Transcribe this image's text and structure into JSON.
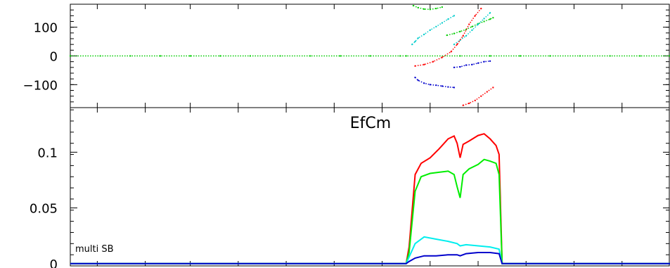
{
  "chart_data": [
    {
      "type": "scatter",
      "panel": "phase",
      "title": "",
      "xlabel": "",
      "ylabel": "",
      "xlim": [
        0,
        1
      ],
      "ylim": [
        -180,
        180
      ],
      "yticks": [
        {
          "value": 100,
          "label": "100"
        },
        {
          "value": 0,
          "label": "0"
        },
        {
          "value": -100,
          "label": "−100"
        }
      ],
      "series": [
        {
          "color": "#00cc00",
          "points": [
            [
              0.0,
              0
            ],
            [
              0.05,
              0
            ],
            [
              0.1,
              0
            ],
            [
              0.15,
              0
            ],
            [
              0.2,
              0
            ],
            [
              0.25,
              0
            ],
            [
              0.3,
              0
            ],
            [
              0.35,
              0
            ],
            [
              0.4,
              0
            ],
            [
              0.45,
              0
            ],
            [
              0.5,
              0
            ],
            [
              0.55,
              0
            ],
            [
              0.56,
              0
            ],
            [
              0.65,
              0
            ],
            [
              0.7,
              0
            ],
            [
              0.75,
              0
            ],
            [
              0.8,
              0
            ],
            [
              0.85,
              0
            ],
            [
              0.9,
              0
            ],
            [
              0.95,
              0
            ],
            [
              1.0,
              0
            ]
          ]
        },
        {
          "color": "#00cc00",
          "points": [
            [
              0.572,
              175
            ],
            [
              0.58,
              168
            ],
            [
              0.59,
              163
            ],
            [
              0.6,
              162
            ],
            [
              0.61,
              165
            ],
            [
              0.62,
              170
            ]
          ]
        },
        {
          "color": "#00cc00",
          "points": [
            [
              0.628,
              72
            ],
            [
              0.64,
              78
            ],
            [
              0.65,
              85
            ],
            [
              0.66,
              92
            ],
            [
              0.67,
              102
            ],
            [
              0.68,
              112
            ],
            [
              0.69,
              120
            ],
            [
              0.7,
              128
            ],
            [
              0.705,
              133
            ]
          ]
        },
        {
          "color": "#00cccc",
          "points": [
            [
              0.57,
              40
            ],
            [
              0.575,
              50
            ],
            [
              0.58,
              62
            ],
            [
              0.59,
              75
            ],
            [
              0.6,
              90
            ],
            [
              0.61,
              102
            ],
            [
              0.62,
              115
            ],
            [
              0.63,
              128
            ],
            [
              0.64,
              140
            ]
          ]
        },
        {
          "color": "#00cccc",
          "points": [
            [
              0.64,
              40
            ],
            [
              0.65,
              55
            ],
            [
              0.66,
              70
            ],
            [
              0.67,
              90
            ],
            [
              0.68,
              110
            ],
            [
              0.69,
              130
            ],
            [
              0.7,
              150
            ]
          ]
        },
        {
          "color": "#ff0000",
          "points": [
            [
              0.575,
              -35
            ],
            [
              0.59,
              -30
            ],
            [
              0.605,
              -20
            ],
            [
              0.62,
              -5
            ],
            [
              0.635,
              15
            ],
            [
              0.645,
              40
            ],
            [
              0.655,
              70
            ],
            [
              0.665,
              110
            ],
            [
              0.675,
              140
            ],
            [
              0.685,
              165
            ]
          ]
        },
        {
          "color": "#ff0000",
          "points": [
            [
              0.655,
              -172
            ],
            [
              0.665,
              -165
            ],
            [
              0.675,
              -155
            ],
            [
              0.685,
              -140
            ],
            [
              0.695,
              -125
            ],
            [
              0.705,
              -110
            ]
          ]
        },
        {
          "color": "#0000cc",
          "points": [
            [
              0.575,
              -75
            ],
            [
              0.58,
              -85
            ],
            [
              0.59,
              -95
            ],
            [
              0.6,
              -100
            ],
            [
              0.61,
              -102
            ],
            [
              0.62,
              -105
            ],
            [
              0.63,
              -108
            ],
            [
              0.64,
              -110
            ]
          ]
        },
        {
          "color": "#0000cc",
          "points": [
            [
              0.64,
              -40
            ],
            [
              0.65,
              -38
            ],
            [
              0.66,
              -32
            ],
            [
              0.67,
              -30
            ],
            [
              0.68,
              -25
            ],
            [
              0.69,
              -20
            ],
            [
              0.7,
              -18
            ]
          ]
        }
      ]
    },
    {
      "type": "line",
      "panel": "amplitude",
      "title": "EfCm",
      "xlabel": "",
      "ylabel": "",
      "xlim": [
        0,
        1
      ],
      "ylim": [
        -0.002,
        0.14
      ],
      "yticks": [
        {
          "value": 0.1,
          "label": "0.1"
        },
        {
          "value": 0.05,
          "label": "0.05"
        },
        {
          "value": 0,
          "label": "0"
        }
      ],
      "annotations": [
        {
          "text": "multi SB"
        }
      ],
      "series": [
        {
          "color": "#ff0000",
          "x": [
            0.0,
            0.55,
            0.56,
            0.565,
            0.575,
            0.585,
            0.6,
            0.615,
            0.63,
            0.64,
            0.645,
            0.65,
            0.655,
            0.665,
            0.68,
            0.69,
            0.7,
            0.71,
            0.715,
            0.72,
            1.0
          ],
          "y": [
            0,
            0,
            0,
            0.015,
            0.08,
            0.09,
            0.095,
            0.103,
            0.112,
            0.1145,
            0.108,
            0.095,
            0.107,
            0.11,
            0.115,
            0.1165,
            0.112,
            0.106,
            0.098,
            0,
            0
          ]
        },
        {
          "color": "#00ee00",
          "x": [
            0.0,
            0.55,
            0.56,
            0.565,
            0.575,
            0.585,
            0.6,
            0.615,
            0.63,
            0.64,
            0.645,
            0.65,
            0.655,
            0.665,
            0.68,
            0.69,
            0.7,
            0.71,
            0.715,
            0.72,
            1.0
          ],
          "y": [
            0,
            0,
            0,
            0.01,
            0.065,
            0.078,
            0.081,
            0.082,
            0.083,
            0.08,
            0.069,
            0.059,
            0.08,
            0.085,
            0.089,
            0.0935,
            0.092,
            0.09,
            0.08,
            0,
            0
          ]
        },
        {
          "color": "#00eeee",
          "x": [
            0.0,
            0.55,
            0.56,
            0.565,
            0.575,
            0.59,
            0.61,
            0.63,
            0.645,
            0.65,
            0.66,
            0.68,
            0.7,
            0.715,
            0.72,
            1.0
          ],
          "y": [
            0,
            0,
            0,
            0.006,
            0.018,
            0.024,
            0.022,
            0.02,
            0.018,
            0.016,
            0.017,
            0.016,
            0.015,
            0.013,
            0,
            0
          ]
        },
        {
          "color": "#0000cc",
          "x": [
            0.0,
            0.55,
            0.56,
            0.565,
            0.575,
            0.59,
            0.61,
            0.63,
            0.645,
            0.65,
            0.66,
            0.68,
            0.7,
            0.715,
            0.72,
            1.0
          ],
          "y": [
            0,
            0,
            0,
            0.002,
            0.005,
            0.007,
            0.007,
            0.008,
            0.008,
            0.007,
            0.009,
            0.01,
            0.01,
            0.009,
            0,
            0
          ]
        }
      ]
    }
  ]
}
